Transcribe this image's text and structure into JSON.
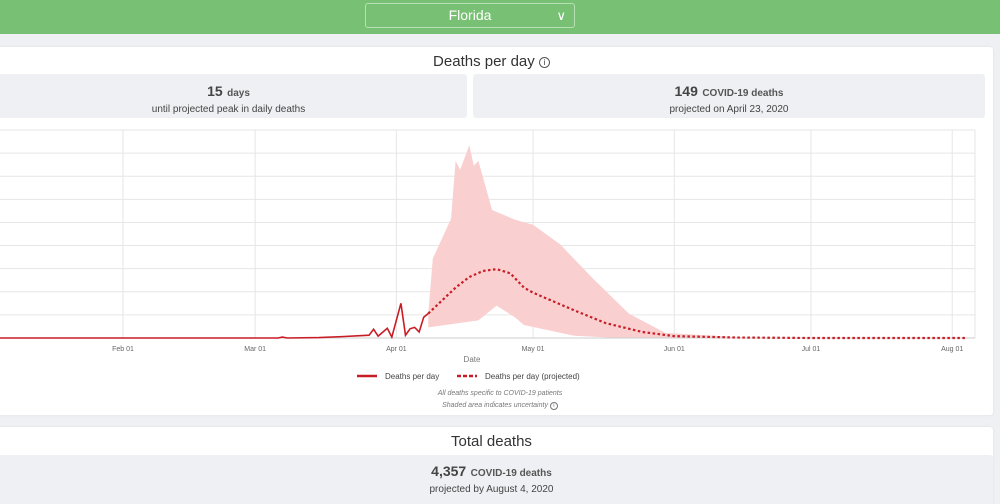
{
  "header": {
    "selected_state": "Florida"
  },
  "deaths_per_day": {
    "title": "Deaths per day",
    "peak_stat": {
      "value": "15",
      "unit": "days",
      "caption": "until projected peak in daily deaths"
    },
    "deaths_stat": {
      "value": "149",
      "unit": "COVID-19 deaths",
      "caption": "projected on April 23, 2020"
    },
    "notes": [
      "All deaths specific to COVID-19 patients",
      "Shaded area indicates uncertainty"
    ]
  },
  "total_deaths": {
    "title": "Total deaths",
    "value": "4,357",
    "unit": "COVID-19 deaths",
    "caption": "projected by August 4, 2020"
  },
  "chart_data": {
    "type": "line",
    "xlabel": "Date",
    "ylabel": "",
    "ylim": [
      0,
      450
    ],
    "xlim": [
      "2020-01-05",
      "2020-08-06"
    ],
    "x_ticks": [
      [
        "2020-02-01",
        "Feb 01"
      ],
      [
        "2020-03-01",
        "Mar 01"
      ],
      [
        "2020-04-01",
        "Apr 01"
      ],
      [
        "2020-05-01",
        "May 01"
      ],
      [
        "2020-06-01",
        "Jun 01"
      ],
      [
        "2020-07-01",
        "Jul 01"
      ],
      [
        "2020-08-01",
        "Aug 01"
      ]
    ],
    "y_grid": [
      50,
      100,
      150,
      200,
      250,
      300,
      350,
      400,
      450
    ],
    "legend": [
      "Deaths per day",
      "Deaths per day (projected)"
    ],
    "series": [
      {
        "name": "Deaths per day",
        "style": "solid",
        "color": "#c81d25",
        "points": [
          [
            "2020-01-05",
            0
          ],
          [
            "2020-03-06",
            0
          ],
          [
            "2020-03-07",
            2
          ],
          [
            "2020-03-08",
            0
          ],
          [
            "2020-03-15",
            1
          ],
          [
            "2020-03-20",
            3
          ],
          [
            "2020-03-24",
            5
          ],
          [
            "2020-03-26",
            6
          ],
          [
            "2020-03-27",
            19
          ],
          [
            "2020-03-28",
            4
          ],
          [
            "2020-03-30",
            21
          ],
          [
            "2020-03-31",
            2
          ],
          [
            "2020-04-02",
            75
          ],
          [
            "2020-04-03",
            6
          ],
          [
            "2020-04-04",
            20
          ],
          [
            "2020-04-05",
            23
          ],
          [
            "2020-04-06",
            13
          ],
          [
            "2020-04-07",
            45
          ],
          [
            "2020-04-08",
            53
          ]
        ]
      },
      {
        "name": "Deaths per day (projected)",
        "style": "dashed",
        "color": "#c81d25",
        "points": [
          [
            "2020-04-08",
            53
          ],
          [
            "2020-04-11",
            81
          ],
          [
            "2020-04-14",
            109
          ],
          [
            "2020-04-17",
            132
          ],
          [
            "2020-04-20",
            145
          ],
          [
            "2020-04-23",
            149
          ],
          [
            "2020-04-26",
            140
          ],
          [
            "2020-04-29",
            109
          ],
          [
            "2020-05-01",
            98
          ],
          [
            "2020-05-10",
            60
          ],
          [
            "2020-05-17",
            32
          ],
          [
            "2020-05-25",
            13
          ],
          [
            "2020-06-01",
            4
          ],
          [
            "2020-06-15",
            1
          ],
          [
            "2020-07-01",
            0
          ],
          [
            "2020-08-04",
            0
          ]
        ]
      }
    ],
    "uncertainty": {
      "color": "#f9cfd0",
      "upper": [
        [
          "2020-04-08",
          53
        ],
        [
          "2020-04-09",
          172
        ],
        [
          "2020-04-13",
          258
        ],
        [
          "2020-04-14",
          383
        ],
        [
          "2020-04-15",
          364
        ],
        [
          "2020-04-17",
          417
        ],
        [
          "2020-04-18",
          373
        ],
        [
          "2020-04-19",
          383
        ],
        [
          "2020-04-22",
          277
        ],
        [
          "2020-04-27",
          256
        ],
        [
          "2020-05-01",
          245
        ],
        [
          "2020-05-07",
          202
        ],
        [
          "2020-05-14",
          130
        ],
        [
          "2020-05-22",
          53
        ],
        [
          "2020-05-30",
          11
        ],
        [
          "2020-06-15",
          2
        ],
        [
          "2020-07-01",
          0
        ],
        [
          "2020-08-04",
          0
        ]
      ],
      "lower": [
        [
          "2020-04-08",
          53
        ],
        [
          "2020-04-08",
          23
        ],
        [
          "2020-04-19",
          38
        ],
        [
          "2020-04-23",
          70
        ],
        [
          "2020-04-27",
          45
        ],
        [
          "2020-04-29",
          28
        ],
        [
          "2020-05-10",
          5
        ],
        [
          "2020-05-20",
          0
        ],
        [
          "2020-08-04",
          0
        ]
      ]
    }
  }
}
